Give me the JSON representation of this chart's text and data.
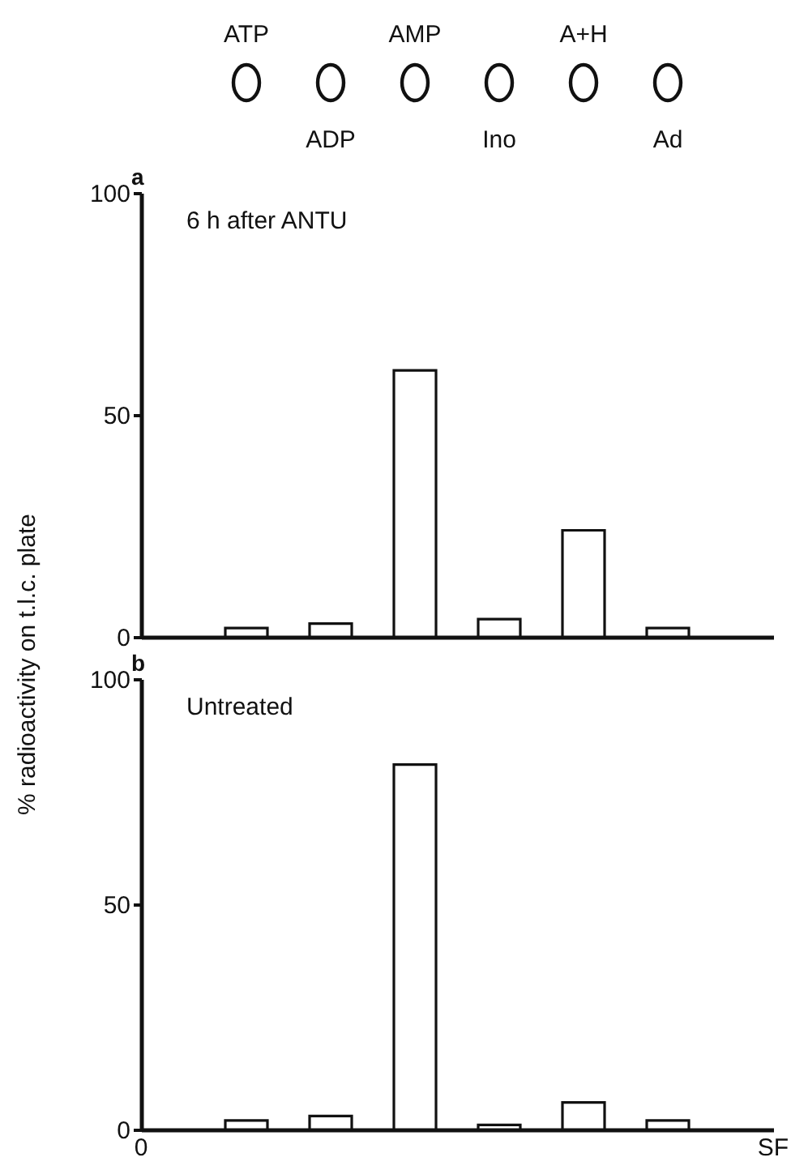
{
  "chart_data": [
    {
      "type": "bar",
      "title": "6 h after ANTU",
      "ylabel": "% radioactivity on t.l.c. plate",
      "annotations": [
        "a"
      ],
      "categories": [
        "ATP",
        "ADP",
        "AMP",
        "Ino",
        "A+H",
        "Ad"
      ],
      "values": [
        2,
        3,
        60,
        4,
        24,
        2
      ],
      "color": "#ffffff",
      "ylim": [
        0,
        100
      ],
      "yticks": [
        0,
        50,
        100
      ]
    },
    {
      "type": "bar",
      "title": "Untreated",
      "annotations": [
        "b",
        "0",
        "SF"
      ],
      "categories": [
        null,
        null,
        null,
        null,
        null,
        null
      ],
      "values": [
        2,
        3,
        81,
        1,
        6,
        2
      ],
      "color": "#ffffff",
      "ylim": [
        0,
        100
      ],
      "yticks": [
        0,
        50,
        100
      ],
      "tick_labels": "y"
    }
  ]
}
